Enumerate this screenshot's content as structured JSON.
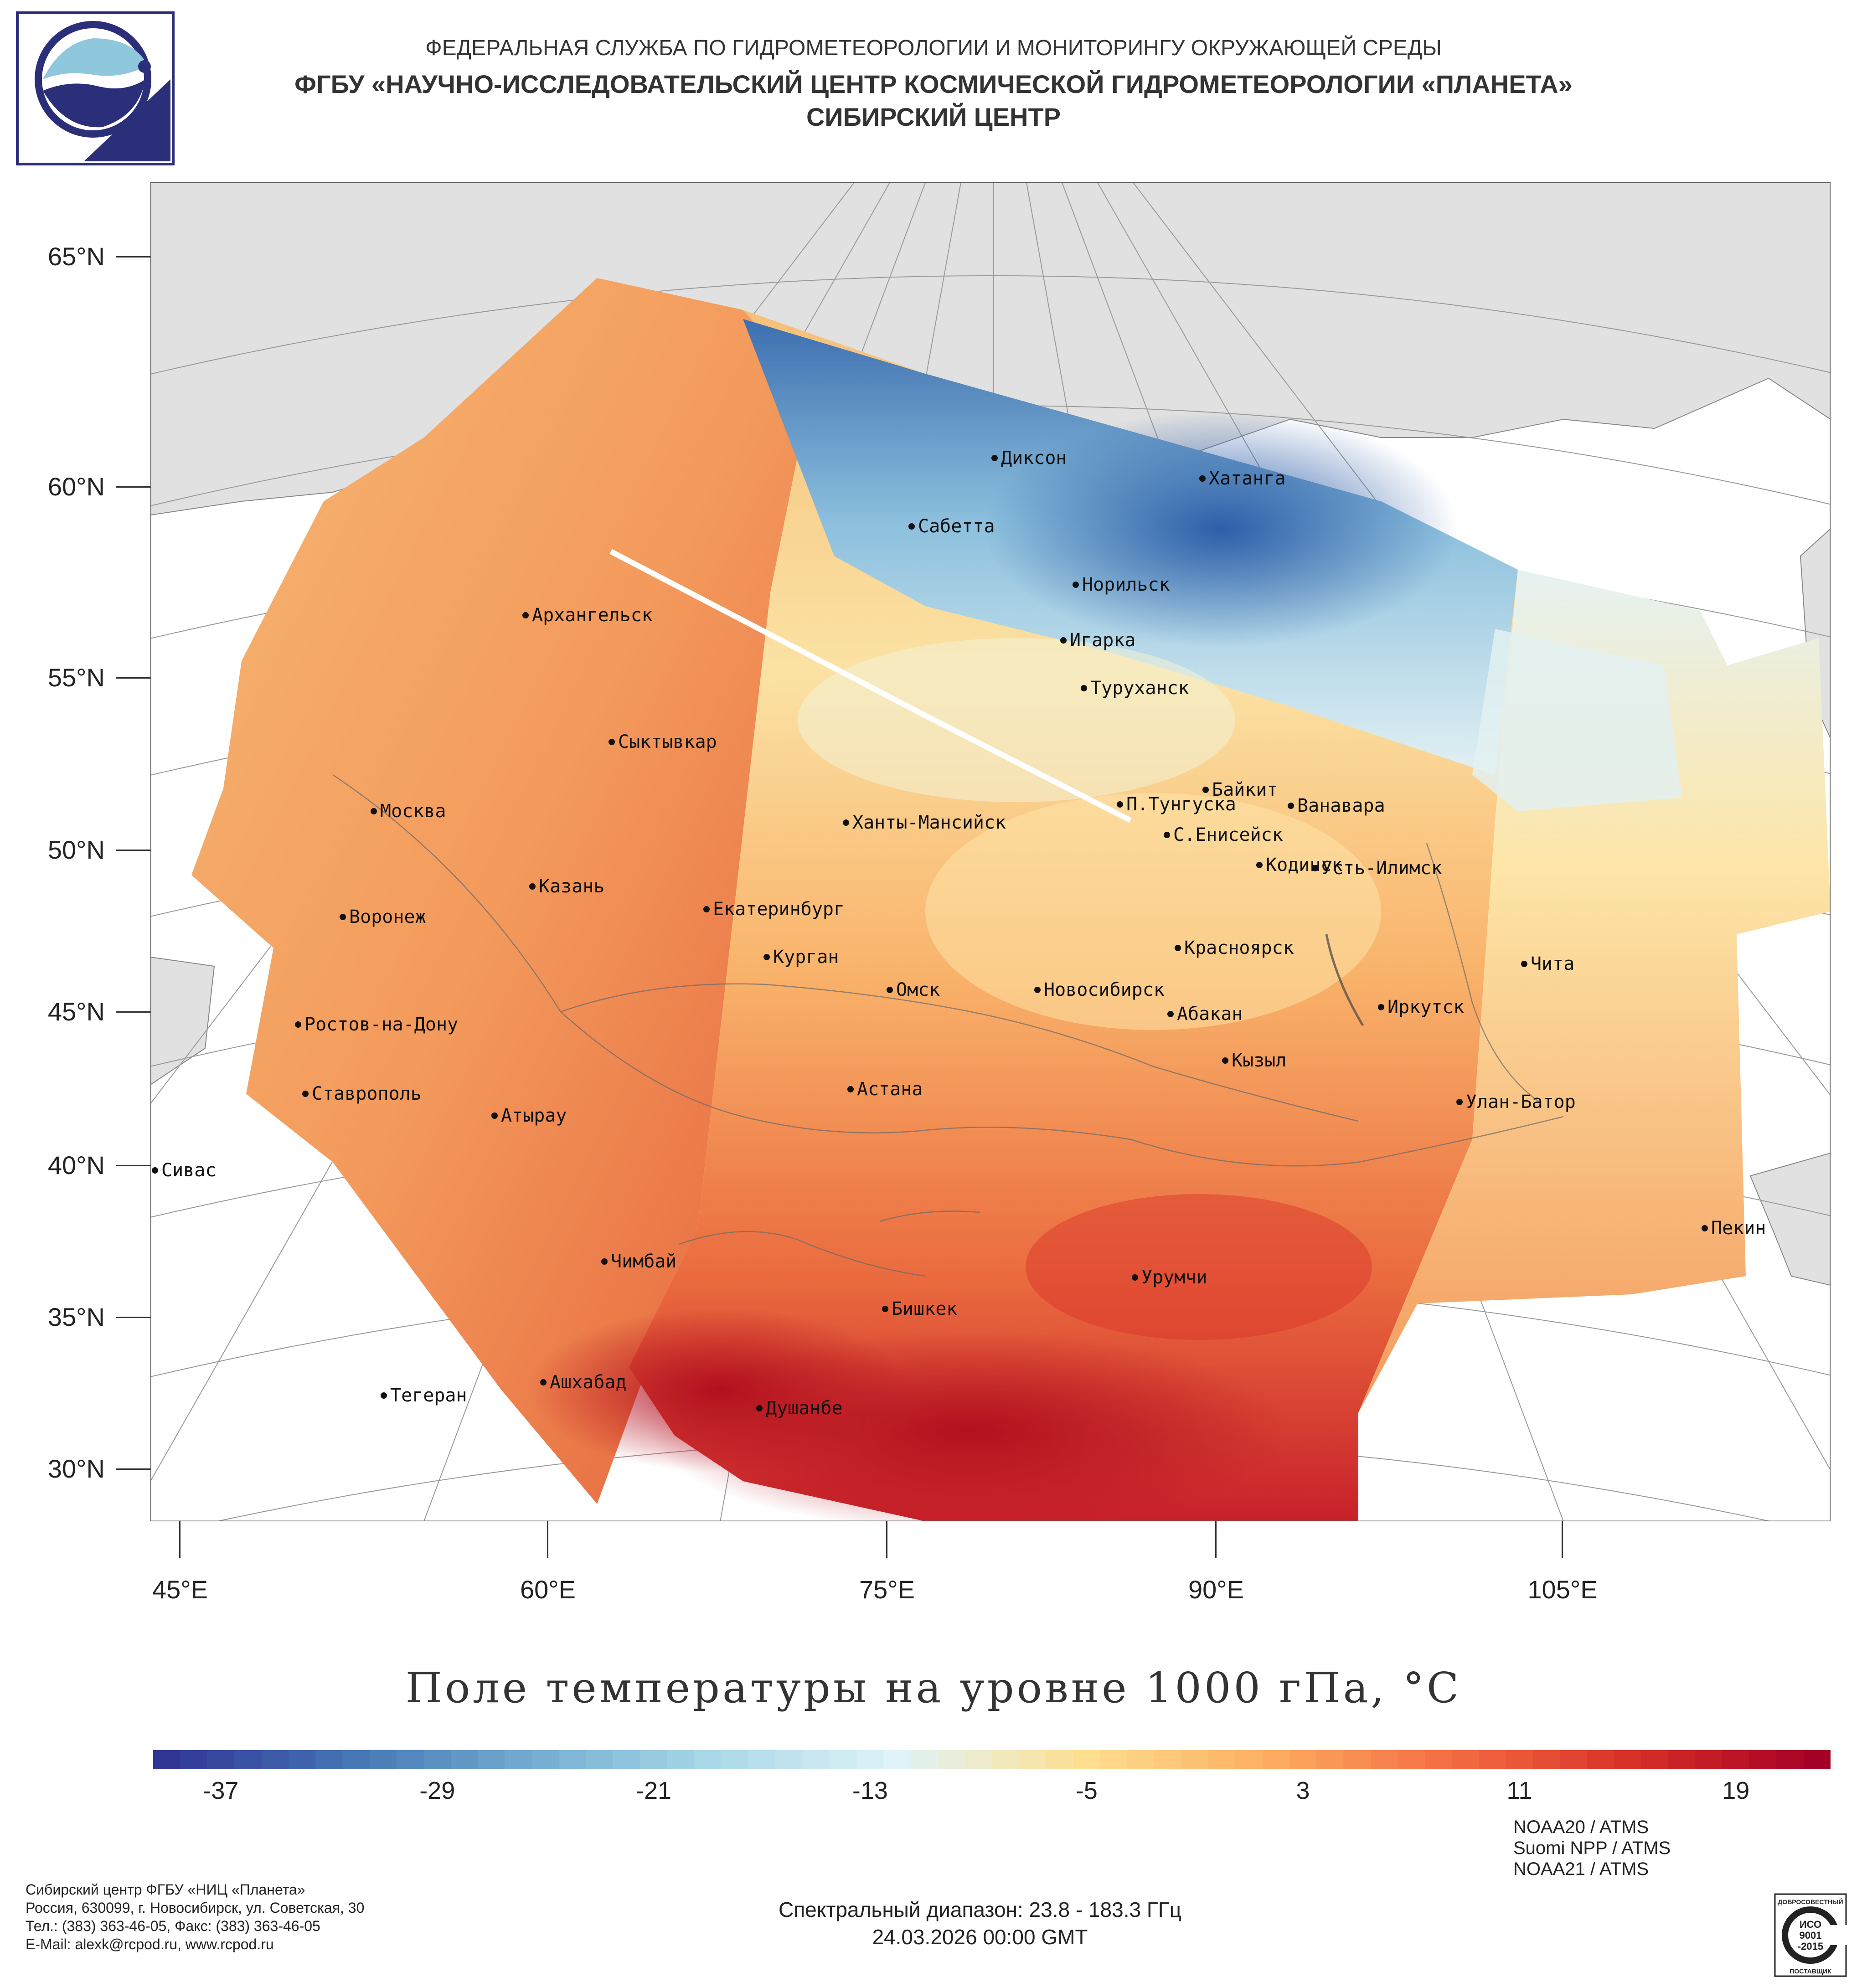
{
  "header": {
    "agency": "ФЕДЕРАЛЬНАЯ СЛУЖБА ПО ГИДРОМЕТЕОРОЛОГИИ И МОНИТОРИНГУ ОКРУЖАЮЩЕЙ СРЕДЫ",
    "institute": "ФГБУ «НАУЧНО-ИССЛЕДОВАТЕЛЬСКИЙ ЦЕНТР КОСМИЧЕСКОЙ ГИДРОМЕТЕОРОЛОГИИ «ПЛАНЕТА»",
    "center": "СИБИРСКИЙ ЦЕНТР"
  },
  "map": {
    "lat_labels": [
      "65°N",
      "60°N",
      "55°N",
      "50°N",
      "45°N",
      "40°N",
      "35°N",
      "30°N"
    ],
    "lon_labels": [
      "45°E",
      "60°E",
      "75°E",
      "90°E",
      "105°E"
    ],
    "cities": [
      {
        "name": "Диксон"
      },
      {
        "name": "Хатанга"
      },
      {
        "name": "Сабетта"
      },
      {
        "name": "Норильск"
      },
      {
        "name": "Архангельск"
      },
      {
        "name": "Игарка"
      },
      {
        "name": "Туруханск"
      },
      {
        "name": "Сыктывкар"
      },
      {
        "name": "Байкит"
      },
      {
        "name": "П.Тунгуска"
      },
      {
        "name": "Ванавара"
      },
      {
        "name": "Москва"
      },
      {
        "name": "Ханты-Мансийск"
      },
      {
        "name": "С.Енисейск"
      },
      {
        "name": "Кодинск"
      },
      {
        "name": "Усть-Илимск"
      },
      {
        "name": "Казань"
      },
      {
        "name": "Екатеринбург"
      },
      {
        "name": "Воронеж"
      },
      {
        "name": "Красноярск"
      },
      {
        "name": "Курган"
      },
      {
        "name": "Чита"
      },
      {
        "name": "Омск"
      },
      {
        "name": "Новосибирск"
      },
      {
        "name": "Иркутск"
      },
      {
        "name": "Абакан"
      },
      {
        "name": "Ростов-на-Дону"
      },
      {
        "name": "Кызыл"
      },
      {
        "name": "Ставрополь"
      },
      {
        "name": "Астана"
      },
      {
        "name": "Улан-Батор"
      },
      {
        "name": "Атырау"
      },
      {
        "name": "Сивас"
      },
      {
        "name": "Пекин"
      },
      {
        "name": "Чимбай"
      },
      {
        "name": "Урумчи"
      },
      {
        "name": "Бишкек"
      },
      {
        "name": "Ашхабад"
      },
      {
        "name": "Душанбе"
      },
      {
        "name": "Тегеран"
      }
    ]
  },
  "colorbar": {
    "title": "Поле температуры на уровне 1000 гПа, °С",
    "min": -39,
    "max": 23,
    "ticks": [
      "-37",
      "-29",
      "-21",
      "-13",
      "-5",
      "3",
      "11",
      "19"
    ],
    "colors": [
      "#313695",
      "#4575b4",
      "#74add1",
      "#abd9e9",
      "#e0f3f8",
      "#fee090",
      "#fdae61",
      "#f46d43",
      "#d73027",
      "#a50026"
    ]
  },
  "footer": {
    "org": "Сибирский центр ФГБУ «НИЦ «Планета»",
    "address": "Россия, 630099, г. Новосибирск, ул. Советская, 30",
    "phone": "Тел.: (383) 363-46-05, Факс: (383) 363-46-05",
    "email": "E-Mail: alexk@rcpod.ru, www.rcpod.ru",
    "spectral": "Спектральный диапазон: 23.8 - 183.3 ГГц",
    "datetime": "24.03.2026 00:00 GMT",
    "instruments": [
      "NOAA20 / ATMS",
      "Suomi NPP / ATMS",
      "NOAA21 / ATMS"
    ],
    "iso": {
      "top": "ДОБРОСОВЕСТНЫЙ",
      "mid1": "ИСО",
      "mid2": "9001",
      "mid3": "-2015",
      "bottom": "ПОСТАВЩИК"
    }
  }
}
